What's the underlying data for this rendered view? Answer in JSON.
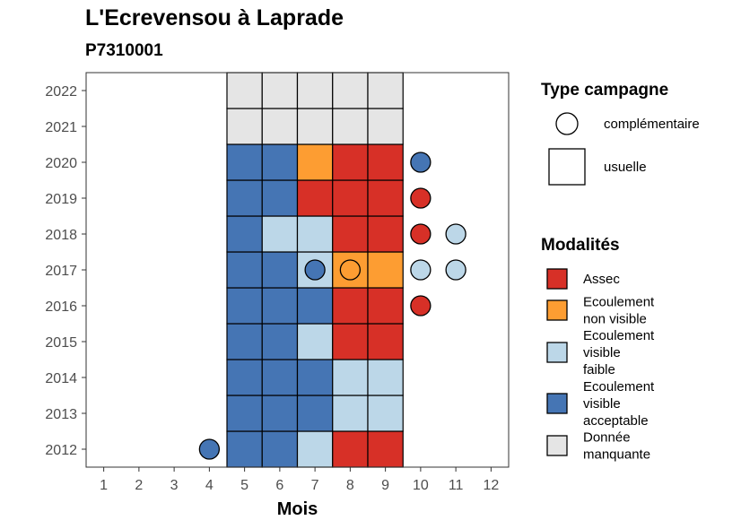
{
  "title": "L'Ecrevensou à Laprade",
  "subtitle": "P7310001",
  "colors": {
    "Assec": "#d73027",
    "Ecoulement non visible": "#fd9d32",
    "Ecoulement visible faible": "#bcd7e8",
    "Ecoulement visible acceptable": "#4575b4",
    "Donnée manquante": "#e5e5e5"
  },
  "chart_data": {
    "type": "heatmap",
    "title": "L'Ecrevensou à Laprade",
    "subtitle": "P7310001",
    "xlabel": "Mois",
    "ylabel": "",
    "x_ticks": [
      1,
      2,
      3,
      4,
      5,
      6,
      7,
      8,
      9,
      10,
      11,
      12
    ],
    "y_ticks": [
      2012,
      2013,
      2014,
      2015,
      2016,
      2017,
      2018,
      2019,
      2020,
      2021,
      2022
    ],
    "xlim": [
      0.5,
      12.5
    ],
    "ylim": [
      2011.5,
      2022.5
    ],
    "cells": [
      {
        "month": 5,
        "year": 2012,
        "type": "usuelle",
        "modalite": "Ecoulement visible acceptable"
      },
      {
        "month": 6,
        "year": 2012,
        "type": "usuelle",
        "modalite": "Ecoulement visible acceptable"
      },
      {
        "month": 7,
        "year": 2012,
        "type": "usuelle",
        "modalite": "Ecoulement visible faible"
      },
      {
        "month": 8,
        "year": 2012,
        "type": "usuelle",
        "modalite": "Assec"
      },
      {
        "month": 9,
        "year": 2012,
        "type": "usuelle",
        "modalite": "Assec"
      },
      {
        "month": 4,
        "year": 2012,
        "type": "complémentaire",
        "modalite": "Ecoulement visible acceptable"
      },
      {
        "month": 5,
        "year": 2013,
        "type": "usuelle",
        "modalite": "Ecoulement visible acceptable"
      },
      {
        "month": 6,
        "year": 2013,
        "type": "usuelle",
        "modalite": "Ecoulement visible acceptable"
      },
      {
        "month": 7,
        "year": 2013,
        "type": "usuelle",
        "modalite": "Ecoulement visible acceptable"
      },
      {
        "month": 8,
        "year": 2013,
        "type": "usuelle",
        "modalite": "Ecoulement visible faible"
      },
      {
        "month": 9,
        "year": 2013,
        "type": "usuelle",
        "modalite": "Ecoulement visible faible"
      },
      {
        "month": 5,
        "year": 2014,
        "type": "usuelle",
        "modalite": "Ecoulement visible acceptable"
      },
      {
        "month": 6,
        "year": 2014,
        "type": "usuelle",
        "modalite": "Ecoulement visible acceptable"
      },
      {
        "month": 7,
        "year": 2014,
        "type": "usuelle",
        "modalite": "Ecoulement visible acceptable"
      },
      {
        "month": 8,
        "year": 2014,
        "type": "usuelle",
        "modalite": "Ecoulement visible faible"
      },
      {
        "month": 9,
        "year": 2014,
        "type": "usuelle",
        "modalite": "Ecoulement visible faible"
      },
      {
        "month": 5,
        "year": 2015,
        "type": "usuelle",
        "modalite": "Ecoulement visible acceptable"
      },
      {
        "month": 6,
        "year": 2015,
        "type": "usuelle",
        "modalite": "Ecoulement visible acceptable"
      },
      {
        "month": 7,
        "year": 2015,
        "type": "usuelle",
        "modalite": "Ecoulement visible faible"
      },
      {
        "month": 8,
        "year": 2015,
        "type": "usuelle",
        "modalite": "Assec"
      },
      {
        "month": 9,
        "year": 2015,
        "type": "usuelle",
        "modalite": "Assec"
      },
      {
        "month": 5,
        "year": 2016,
        "type": "usuelle",
        "modalite": "Ecoulement visible acceptable"
      },
      {
        "month": 6,
        "year": 2016,
        "type": "usuelle",
        "modalite": "Ecoulement visible acceptable"
      },
      {
        "month": 7,
        "year": 2016,
        "type": "usuelle",
        "modalite": "Ecoulement visible acceptable"
      },
      {
        "month": 8,
        "year": 2016,
        "type": "usuelle",
        "modalite": "Assec"
      },
      {
        "month": 9,
        "year": 2016,
        "type": "usuelle",
        "modalite": "Assec"
      },
      {
        "month": 10,
        "year": 2016,
        "type": "complémentaire",
        "modalite": "Assec"
      },
      {
        "month": 5,
        "year": 2017,
        "type": "usuelle",
        "modalite": "Ecoulement visible acceptable"
      },
      {
        "month": 6,
        "year": 2017,
        "type": "usuelle",
        "modalite": "Ecoulement visible acceptable"
      },
      {
        "month": 7,
        "year": 2017,
        "type": "usuelle",
        "modalite": "Ecoulement visible faible"
      },
      {
        "month": 8,
        "year": 2017,
        "type": "usuelle",
        "modalite": "Ecoulement non visible"
      },
      {
        "month": 9,
        "year": 2017,
        "type": "usuelle",
        "modalite": "Ecoulement non visible"
      },
      {
        "month": 7,
        "year": 2017,
        "type": "complémentaire",
        "modalite": "Ecoulement visible acceptable"
      },
      {
        "month": 8,
        "year": 2017,
        "type": "complémentaire",
        "modalite": "Ecoulement non visible"
      },
      {
        "month": 10,
        "year": 2017,
        "type": "complémentaire",
        "modalite": "Ecoulement visible faible"
      },
      {
        "month": 11,
        "year": 2017,
        "type": "complémentaire",
        "modalite": "Ecoulement visible faible"
      },
      {
        "month": 5,
        "year": 2018,
        "type": "usuelle",
        "modalite": "Ecoulement visible acceptable"
      },
      {
        "month": 6,
        "year": 2018,
        "type": "usuelle",
        "modalite": "Ecoulement visible faible"
      },
      {
        "month": 7,
        "year": 2018,
        "type": "usuelle",
        "modalite": "Ecoulement visible faible"
      },
      {
        "month": 8,
        "year": 2018,
        "type": "usuelle",
        "modalite": "Assec"
      },
      {
        "month": 9,
        "year": 2018,
        "type": "usuelle",
        "modalite": "Assec"
      },
      {
        "month": 10,
        "year": 2018,
        "type": "complémentaire",
        "modalite": "Assec"
      },
      {
        "month": 11,
        "year": 2018,
        "type": "complémentaire",
        "modalite": "Ecoulement visible faible"
      },
      {
        "month": 5,
        "year": 2019,
        "type": "usuelle",
        "modalite": "Ecoulement visible acceptable"
      },
      {
        "month": 6,
        "year": 2019,
        "type": "usuelle",
        "modalite": "Ecoulement visible acceptable"
      },
      {
        "month": 7,
        "year": 2019,
        "type": "usuelle",
        "modalite": "Assec"
      },
      {
        "month": 8,
        "year": 2019,
        "type": "usuelle",
        "modalite": "Assec"
      },
      {
        "month": 9,
        "year": 2019,
        "type": "usuelle",
        "modalite": "Assec"
      },
      {
        "month": 10,
        "year": 2019,
        "type": "complémentaire",
        "modalite": "Assec"
      },
      {
        "month": 5,
        "year": 2020,
        "type": "usuelle",
        "modalite": "Ecoulement visible acceptable"
      },
      {
        "month": 6,
        "year": 2020,
        "type": "usuelle",
        "modalite": "Ecoulement visible acceptable"
      },
      {
        "month": 7,
        "year": 2020,
        "type": "usuelle",
        "modalite": "Ecoulement non visible"
      },
      {
        "month": 8,
        "year": 2020,
        "type": "usuelle",
        "modalite": "Assec"
      },
      {
        "month": 9,
        "year": 2020,
        "type": "usuelle",
        "modalite": "Assec"
      },
      {
        "month": 10,
        "year": 2020,
        "type": "complémentaire",
        "modalite": "Ecoulement visible acceptable"
      },
      {
        "month": 5,
        "year": 2021,
        "type": "usuelle",
        "modalite": "Donnée manquante"
      },
      {
        "month": 6,
        "year": 2021,
        "type": "usuelle",
        "modalite": "Donnée manquante"
      },
      {
        "month": 7,
        "year": 2021,
        "type": "usuelle",
        "modalite": "Donnée manquante"
      },
      {
        "month": 8,
        "year": 2021,
        "type": "usuelle",
        "modalite": "Donnée manquante"
      },
      {
        "month": 9,
        "year": 2021,
        "type": "usuelle",
        "modalite": "Donnée manquante"
      },
      {
        "month": 5,
        "year": 2022,
        "type": "usuelle",
        "modalite": "Donnée manquante"
      },
      {
        "month": 6,
        "year": 2022,
        "type": "usuelle",
        "modalite": "Donnée manquante"
      },
      {
        "month": 7,
        "year": 2022,
        "type": "usuelle",
        "modalite": "Donnée manquante"
      },
      {
        "month": 8,
        "year": 2022,
        "type": "usuelle",
        "modalite": "Donnée manquante"
      },
      {
        "month": 9,
        "year": 2022,
        "type": "usuelle",
        "modalite": "Donnée manquante"
      }
    ]
  },
  "legend": {
    "type_title": "Type campagne",
    "type_items": [
      {
        "label": "complémentaire",
        "shape": "circle"
      },
      {
        "label": "usuelle",
        "shape": "square"
      }
    ],
    "modalites_title": "Modalités",
    "modalites_items": [
      {
        "key": "Assec",
        "lines": [
          "Assec"
        ]
      },
      {
        "key": "Ecoulement non visible",
        "lines": [
          "Ecoulement",
          "non visible"
        ]
      },
      {
        "key": "Ecoulement visible faible",
        "lines": [
          "Ecoulement",
          "visible",
          "faible"
        ]
      },
      {
        "key": "Ecoulement visible acceptable",
        "lines": [
          "Ecoulement",
          "visible",
          "acceptable"
        ]
      },
      {
        "key": "Donnée manquante",
        "lines": [
          "Donnée",
          "manquante"
        ]
      }
    ]
  }
}
